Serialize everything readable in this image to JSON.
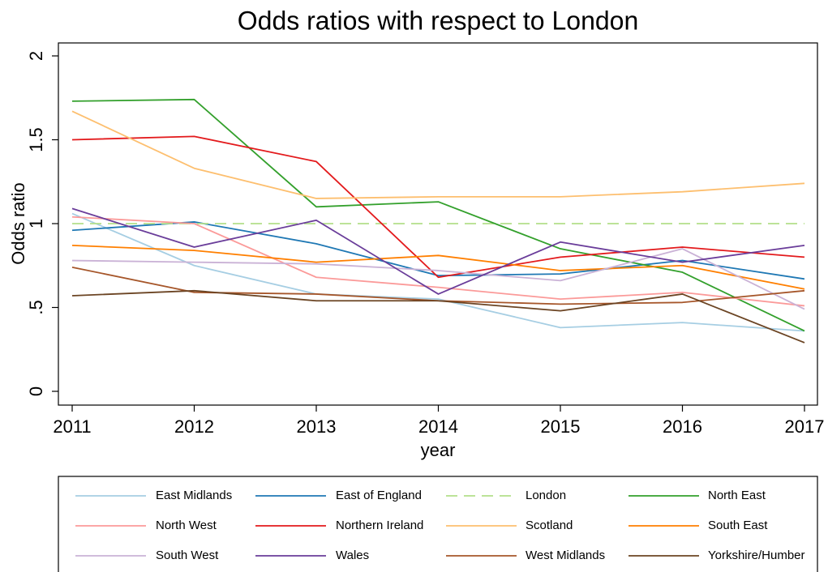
{
  "chart_data": {
    "type": "line",
    "title": "Odds ratios with respect to London",
    "x_label": "year",
    "y_label": "Odds ratio",
    "x": [
      2011,
      2012,
      2013,
      2014,
      2015,
      2016,
      2017
    ],
    "xlim": [
      2011,
      2017
    ],
    "xticks": [
      2011,
      2012,
      2013,
      2014,
      2015,
      2016,
      2017
    ],
    "ylim": [
      0,
      2
    ],
    "yticks": [
      0,
      {
        "value": 0.5,
        "label": ".5"
      },
      1,
      1.5,
      2
    ],
    "grid": false,
    "legend": "bottom",
    "series": [
      {
        "name": "East Midlands",
        "color": "#a6cee3",
        "values": [
          1.06,
          0.75,
          0.58,
          0.55,
          0.38,
          0.41,
          0.36
        ]
      },
      {
        "name": "East of England",
        "color": "#1f78b4",
        "values": [
          0.96,
          1.01,
          0.88,
          0.69,
          0.7,
          0.78,
          0.67
        ]
      },
      {
        "name": "London",
        "color": "#b2df8a",
        "style": "dashed",
        "values": [
          1,
          1,
          1,
          1,
          1,
          1,
          1
        ]
      },
      {
        "name": "North East",
        "color": "#33a02c",
        "values": [
          1.73,
          1.74,
          1.1,
          1.13,
          0.85,
          0.71,
          0.36
        ]
      },
      {
        "name": "North West",
        "color": "#fb9a99",
        "values": [
          1.04,
          1.0,
          0.68,
          0.62,
          0.55,
          0.59,
          0.51
        ]
      },
      {
        "name": "Northern Ireland",
        "color": "#e31a1c",
        "values": [
          1.5,
          1.52,
          1.37,
          0.68,
          0.8,
          0.86,
          0.8
        ]
      },
      {
        "name": "Scotland",
        "color": "#fdbf6f",
        "values": [
          1.67,
          1.33,
          1.15,
          1.16,
          1.16,
          1.19,
          1.24
        ]
      },
      {
        "name": "South East",
        "color": "#ff7f00",
        "values": [
          0.87,
          0.84,
          0.77,
          0.81,
          0.72,
          0.75,
          0.61
        ]
      },
      {
        "name": "South West",
        "color": "#cab2d6",
        "values": [
          0.78,
          0.77,
          0.76,
          0.72,
          0.66,
          0.85,
          0.49
        ]
      },
      {
        "name": "Wales",
        "color": "#6a3d9a",
        "values": [
          1.09,
          0.86,
          1.02,
          0.58,
          0.89,
          0.77,
          0.87
        ]
      },
      {
        "name": "West Midlands",
        "color": "#a6562a",
        "values": [
          0.74,
          0.59,
          0.58,
          0.54,
          0.52,
          0.53,
          0.6
        ]
      },
      {
        "name": "Yorkshire/Humber",
        "color": "#6b4423",
        "values": [
          0.57,
          0.6,
          0.54,
          0.54,
          0.48,
          0.58,
          0.29
        ]
      }
    ]
  }
}
